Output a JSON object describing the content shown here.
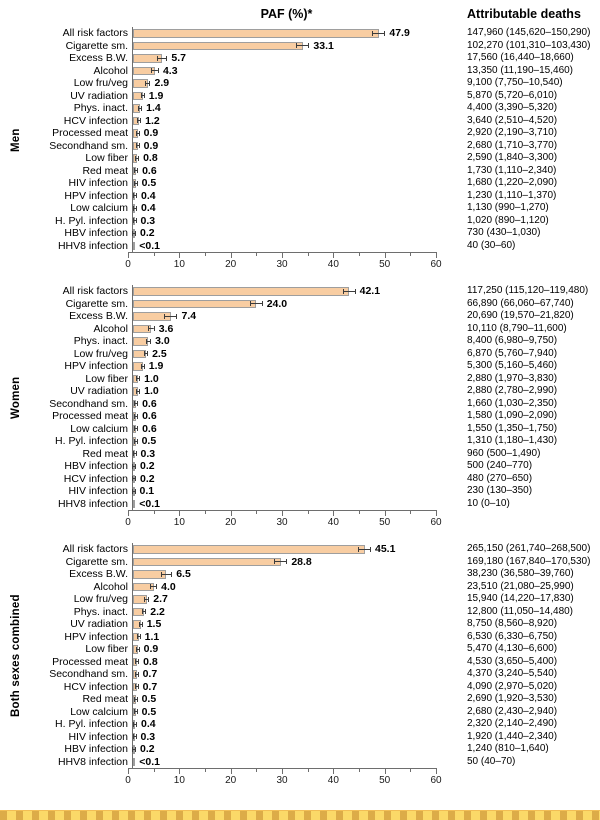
{
  "header": {
    "paf_title": "PAF (%)*",
    "deaths_title": "Attributable deaths"
  },
  "axis": {
    "min": 0,
    "max": 60,
    "major_step": 10,
    "minor_step": 5,
    "tick_labels": [
      "0",
      "10",
      "20",
      "30",
      "40",
      "50",
      "60"
    ]
  },
  "colors": {
    "bar_fill": "#F8CDA2",
    "bar_border": "#9E9E9E",
    "error_bar": "#3C3C3C",
    "axis": "#6E6E6E",
    "highlight_strip": "#FBD968"
  },
  "chart_data": [
    {
      "type": "bar",
      "orientation": "horizontal",
      "panel_label": "Men",
      "xlabel": "PAF (%)*",
      "xlim": [
        0,
        60
      ],
      "categories": [
        "All risk factors",
        "Cigarette sm.",
        "Excess B.W.",
        "Alcohol",
        "Low fru/veg",
        "UV radiation",
        "Phys. inact.",
        "HCV infection",
        "Processed meat",
        "Secondhand sm.",
        "Low fiber",
        "Red meat",
        "HIV infection",
        "HPV infection",
        "Low calcium",
        "H. Pyl. infection",
        "HBV infection",
        "HHV8 infection"
      ],
      "values": [
        47.9,
        33.1,
        5.7,
        4.3,
        2.9,
        1.9,
        1.4,
        1.2,
        0.9,
        0.9,
        0.8,
        0.6,
        0.5,
        0.4,
        0.4,
        0.3,
        0.2,
        0.05
      ],
      "value_labels": [
        "47.9",
        "33.1",
        "5.7",
        "4.3",
        "2.9",
        "1.9",
        "1.4",
        "1.2",
        "0.9",
        "0.9",
        "0.8",
        "0.6",
        "0.5",
        "0.4",
        "0.4",
        "0.3",
        "0.2",
        "<0.1"
      ],
      "deaths": [
        "147,960 (145,620–150,290)",
        "102,270 (101,310–103,430)",
        "17,560 (16,440–18,660)",
        "13,350 (11,190–15,460)",
        "9,100 (7,750–10,540)",
        "5,870 (5,720–6,010)",
        "4,400 (3,390–5,320)",
        "3,640 (2,510–4,520)",
        "2,920 (2,190–3,710)",
        "2,680 (1,710–3,770)",
        "2,590 (1,840–3,300)",
        "1,730 (1,110–2,340)",
        "1,680 (1,220–2,090)",
        "1,230 (1,110–1,370)",
        "1,130 (990–1,270)",
        "1,020 (890–1,120)",
        "730 (430–1,030)",
        "40 (30–60)"
      ]
    },
    {
      "type": "bar",
      "orientation": "horizontal",
      "panel_label": "Women",
      "xlabel": "PAF (%)*",
      "xlim": [
        0,
        60
      ],
      "categories": [
        "All risk factors",
        "Cigarette sm.",
        "Excess B.W.",
        "Alcohol",
        "Phys. inact.",
        "Low fru/veg",
        "HPV infection",
        "Low fiber",
        "UV radiation",
        "Secondhand sm.",
        "Processed meat",
        "Low calcium",
        "H. Pyl. infection",
        "Red meat",
        "HBV infection",
        "HCV infection",
        "HIV infection",
        "HHV8 infection"
      ],
      "values": [
        42.1,
        24.0,
        7.4,
        3.6,
        3.0,
        2.5,
        1.9,
        1.0,
        1.0,
        0.6,
        0.6,
        0.6,
        0.5,
        0.3,
        0.2,
        0.2,
        0.1,
        0.05
      ],
      "value_labels": [
        "42.1",
        "24.0",
        "7.4",
        "3.6",
        "3.0",
        "2.5",
        "1.9",
        "1.0",
        "1.0",
        "0.6",
        "0.6",
        "0.6",
        "0.5",
        "0.3",
        "0.2",
        "0.2",
        "0.1",
        "<0.1"
      ],
      "deaths": [
        "117,250 (115,120–119,480)",
        "66,890 (66,060–67,740)",
        "20,690 (19,570–21,820)",
        "10,110 (8,790–11,600)",
        "8,400 (6,980–9,750)",
        "6,870 (5,760–7,940)",
        "5,300 (5,160–5,460)",
        "2,880 (1,970–3,830)",
        "2,880 (2,780–2,990)",
        "1,660 (1,030–2,350)",
        "1,580 (1,090–2,090)",
        "1,550 (1,350–1,750)",
        "1,310 (1,180–1,430)",
        "960 (500–1,490)",
        "500 (240–770)",
        "480 (270–650)",
        "230 (130–350)",
        "10 (0–10)"
      ]
    },
    {
      "type": "bar",
      "orientation": "horizontal",
      "panel_label": "Both sexes combined",
      "xlabel": "PAF (%)*",
      "xlim": [
        0,
        60
      ],
      "categories": [
        "All risk factors",
        "Cigarette sm.",
        "Excess B.W.",
        "Alcohol",
        "Low fru/veg",
        "Phys. inact.",
        "UV radiation",
        "HPV infection",
        "Low fiber",
        "Processed meat",
        "Secondhand sm.",
        "HCV infection",
        "Red meat",
        "Low calcium",
        "H. Pyl. infection",
        "HIV infection",
        "HBV infection",
        "HHV8 infection"
      ],
      "values": [
        45.1,
        28.8,
        6.5,
        4.0,
        2.7,
        2.2,
        1.5,
        1.1,
        0.9,
        0.8,
        0.7,
        0.7,
        0.5,
        0.5,
        0.4,
        0.3,
        0.2,
        0.05
      ],
      "value_labels": [
        "45.1",
        "28.8",
        "6.5",
        "4.0",
        "2.7",
        "2.2",
        "1.5",
        "1.1",
        "0.9",
        "0.8",
        "0.7",
        "0.7",
        "0.5",
        "0.5",
        "0.4",
        "0.3",
        "0.2",
        "<0.1"
      ],
      "deaths": [
        "265,150 (261,740–268,500)",
        "169,180 (167,840–170,530)",
        "38,230 (36,580–39,760)",
        "23,510 (21,080–25,990)",
        "15,940 (14,220–17,830)",
        "12,800 (11,050–14,480)",
        "8,750 (8,560–8,920)",
        "6,530 (6,330–6,750)",
        "5,470 (4,130–6,600)",
        "4,530 (3,650–5,400)",
        "4,370 (3,240–5,540)",
        "4,090 (2,970–5,020)",
        "2,690 (1,920–3,530)",
        "2,680 (2,430–2,940)",
        "2,320 (2,140–2,490)",
        "1,920 (1,440–2,340)",
        "1,240 (810–1,640)",
        "50 (40–70)"
      ]
    }
  ]
}
